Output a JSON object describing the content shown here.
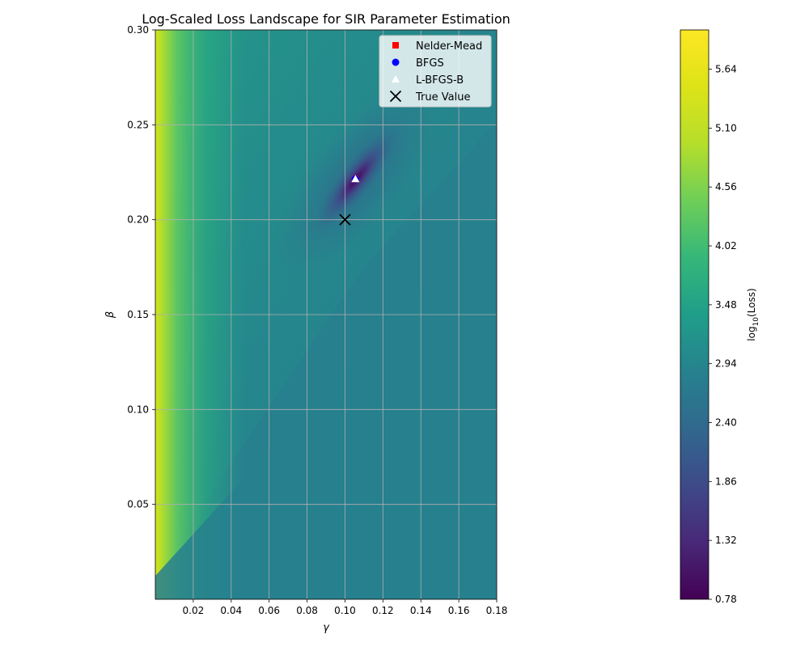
{
  "chart_data": {
    "type": "heatmap",
    "title": "Log-Scaled Loss Landscape for SIR Parameter Estimation",
    "xlabel": "γ",
    "ylabel": "β",
    "xlim": [
      0.0,
      0.18
    ],
    "ylim": [
      0.0,
      0.3
    ],
    "x_ticks": [
      0.02,
      0.04,
      0.06,
      0.08,
      0.1,
      0.12,
      0.14,
      0.16,
      0.18
    ],
    "x_tick_labels": [
      "0.02",
      "0.04",
      "0.06",
      "0.08",
      "0.10",
      "0.12",
      "0.14",
      "0.16",
      "0.18"
    ],
    "y_ticks": [
      0.05,
      0.1,
      0.15,
      0.2,
      0.25,
      0.3
    ],
    "y_tick_labels": [
      "0.05",
      "0.10",
      "0.15",
      "0.20",
      "0.25",
      "0.30"
    ],
    "grid": true,
    "colormap": "viridis",
    "colorbar": {
      "label_main": "log",
      "label_sub": "10",
      "label_rest": "(Loss)",
      "range": [
        0.78,
        6.0
      ],
      "ticks": [
        0.78,
        1.32,
        1.86,
        2.4,
        2.94,
        3.48,
        4.02,
        4.56,
        5.1,
        5.64
      ],
      "tick_labels": [
        "0.78",
        "1.32",
        "1.86",
        "2.40",
        "2.94",
        "3.48",
        "4.02",
        "4.56",
        "5.10",
        "5.64"
      ]
    },
    "markers": [
      {
        "name": "Nelder-Mead",
        "shape": "square",
        "color": "#ff0000",
        "gamma": 0.1055,
        "beta": 0.2215
      },
      {
        "name": "BFGS",
        "shape": "circle",
        "color": "#0000ff",
        "gamma": 0.1055,
        "beta": 0.2215
      },
      {
        "name": "L-BFGS-B",
        "shape": "triangle",
        "color": "#ffffff",
        "gamma": 0.1055,
        "beta": 0.2215
      },
      {
        "name": "True Value",
        "shape": "x",
        "color": "#000000",
        "gamma": 0.1,
        "beta": 0.2
      }
    ],
    "legend_position": "top-right"
  }
}
